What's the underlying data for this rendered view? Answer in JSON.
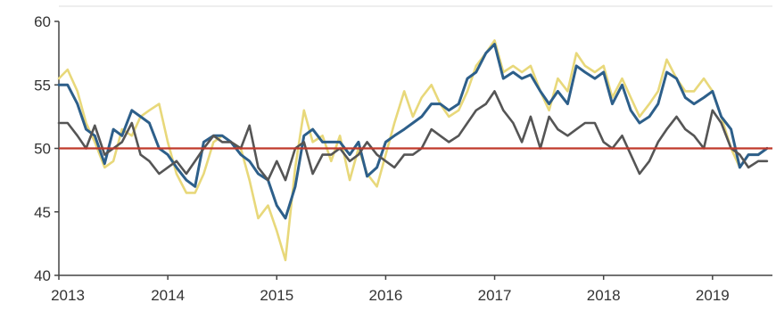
{
  "chart_data": {
    "type": "line",
    "title": "",
    "xlabel": "",
    "ylabel": "",
    "xlim": [
      2013.0,
      2019.55
    ],
    "ylim": [
      40,
      60
    ],
    "y_ticks": [
      40,
      45,
      50,
      55,
      60
    ],
    "x_ticks": [
      2013,
      2014,
      2015,
      2016,
      2017,
      2018,
      2019
    ],
    "x_tick_labels": [
      "2013",
      "2014",
      "2015",
      "2016",
      "2017",
      "2018",
      "2019"
    ],
    "grid": false,
    "legend": "none",
    "reference_line": {
      "y": 50,
      "color": "#c0392b"
    },
    "series": [
      {
        "color": "#e8d87a",
        "x": [
          2013.0,
          2013.08,
          2013.17,
          2013.25,
          2013.33,
          2013.42,
          2013.5,
          2013.58,
          2013.67,
          2013.75,
          2013.83,
          2013.92,
          2014.0,
          2014.08,
          2014.17,
          2014.25,
          2014.33,
          2014.42,
          2014.5,
          2014.58,
          2014.67,
          2014.75,
          2014.83,
          2014.92,
          2015.0,
          2015.08,
          2015.17,
          2015.25,
          2015.33,
          2015.42,
          2015.5,
          2015.58,
          2015.67,
          2015.75,
          2015.83,
          2015.92,
          2016.0,
          2016.08,
          2016.17,
          2016.25,
          2016.33,
          2016.42,
          2016.5,
          2016.58,
          2016.67,
          2016.75,
          2016.83,
          2016.92,
          2017.0,
          2017.08,
          2017.17,
          2017.25,
          2017.33,
          2017.42,
          2017.5,
          2017.58,
          2017.67,
          2017.75,
          2017.83,
          2017.92,
          2018.0,
          2018.08,
          2018.17,
          2018.25,
          2018.33,
          2018.42,
          2018.5,
          2018.58,
          2018.67,
          2018.75,
          2018.83,
          2018.92,
          2019.0,
          2019.08,
          2019.17,
          2019.25,
          2019.33,
          2019.42,
          2019.5
        ],
        "values": [
          55.5,
          56.2,
          54.5,
          52.0,
          50.5,
          48.5,
          49.0,
          51.5,
          51.0,
          52.5,
          53.0,
          53.5,
          50.5,
          48.0,
          46.5,
          46.5,
          48.0,
          50.5,
          51.0,
          50.5,
          50.0,
          47.5,
          44.5,
          45.5,
          43.5,
          41.2,
          48.5,
          53.0,
          50.5,
          51.0,
          49.0,
          51.0,
          47.5,
          50.0,
          48.0,
          47.0,
          49.5,
          52.0,
          54.5,
          52.5,
          54.0,
          55.0,
          53.5,
          52.5,
          53.0,
          54.5,
          56.5,
          57.5,
          58.5,
          56.0,
          56.5,
          56.0,
          56.5,
          54.5,
          53.0,
          55.5,
          54.5,
          57.5,
          56.5,
          56.0,
          56.5,
          54.0,
          55.5,
          54.0,
          52.5,
          53.5,
          54.5,
          57.0,
          55.5,
          54.5,
          54.5,
          55.5,
          54.5,
          52.5,
          50.0,
          48.5,
          49.5,
          49.5,
          50.0
        ]
      },
      {
        "color": "#2d5f8a",
        "x": [
          2013.0,
          2013.08,
          2013.17,
          2013.25,
          2013.33,
          2013.42,
          2013.5,
          2013.58,
          2013.67,
          2013.75,
          2013.83,
          2013.92,
          2014.0,
          2014.08,
          2014.17,
          2014.25,
          2014.33,
          2014.42,
          2014.5,
          2014.58,
          2014.67,
          2014.75,
          2014.83,
          2014.92,
          2015.0,
          2015.08,
          2015.17,
          2015.25,
          2015.33,
          2015.42,
          2015.5,
          2015.58,
          2015.67,
          2015.75,
          2015.83,
          2015.92,
          2016.0,
          2016.08,
          2016.17,
          2016.25,
          2016.33,
          2016.42,
          2016.5,
          2016.58,
          2016.67,
          2016.75,
          2016.83,
          2016.92,
          2017.0,
          2017.08,
          2017.17,
          2017.25,
          2017.33,
          2017.42,
          2017.5,
          2017.58,
          2017.67,
          2017.75,
          2017.83,
          2017.92,
          2018.0,
          2018.08,
          2018.17,
          2018.25,
          2018.33,
          2018.42,
          2018.5,
          2018.58,
          2018.67,
          2018.75,
          2018.83,
          2018.92,
          2019.0,
          2019.08,
          2019.17,
          2019.25,
          2019.33,
          2019.42,
          2019.5
        ],
        "values": [
          55.0,
          55.0,
          53.5,
          51.5,
          51.0,
          48.8,
          51.5,
          51.0,
          53.0,
          52.5,
          52.0,
          50.0,
          49.5,
          48.5,
          47.5,
          47.0,
          50.5,
          51.0,
          51.0,
          50.5,
          49.5,
          49.0,
          48.0,
          47.5,
          45.5,
          44.5,
          47.0,
          51.0,
          51.5,
          50.5,
          50.5,
          50.5,
          49.5,
          50.5,
          47.8,
          48.5,
          50.5,
          51.0,
          51.5,
          52.0,
          52.5,
          53.5,
          53.5,
          53.0,
          53.5,
          55.5,
          56.0,
          57.5,
          58.2,
          55.5,
          56.0,
          55.5,
          55.8,
          54.5,
          53.5,
          54.5,
          53.5,
          56.5,
          56.0,
          55.5,
          56.0,
          53.5,
          55.0,
          53.0,
          52.0,
          52.5,
          53.5,
          56.0,
          55.5,
          54.0,
          53.5,
          54.0,
          54.5,
          52.5,
          51.5,
          48.5,
          49.5,
          49.5,
          50.0
        ]
      },
      {
        "color": "#555555",
        "x": [
          2013.0,
          2013.08,
          2013.17,
          2013.25,
          2013.33,
          2013.42,
          2013.5,
          2013.58,
          2013.67,
          2013.75,
          2013.83,
          2013.92,
          2014.0,
          2014.08,
          2014.17,
          2014.25,
          2014.33,
          2014.42,
          2014.5,
          2014.58,
          2014.67,
          2014.75,
          2014.83,
          2014.92,
          2015.0,
          2015.08,
          2015.17,
          2015.25,
          2015.33,
          2015.42,
          2015.5,
          2015.58,
          2015.67,
          2015.75,
          2015.83,
          2015.92,
          2016.0,
          2016.08,
          2016.17,
          2016.25,
          2016.33,
          2016.42,
          2016.5,
          2016.58,
          2016.67,
          2016.75,
          2016.83,
          2016.92,
          2017.0,
          2017.08,
          2017.17,
          2017.25,
          2017.33,
          2017.42,
          2017.5,
          2017.58,
          2017.67,
          2017.75,
          2017.83,
          2017.92,
          2018.0,
          2018.08,
          2018.17,
          2018.25,
          2018.33,
          2018.42,
          2018.5,
          2018.58,
          2018.67,
          2018.75,
          2018.83,
          2018.92,
          2019.0,
          2019.08,
          2019.17,
          2019.25,
          2019.33,
          2019.42,
          2019.5
        ],
        "values": [
          52.0,
          52.0,
          51.0,
          50.0,
          51.8,
          49.5,
          50.0,
          50.5,
          52.0,
          49.5,
          49.0,
          48.0,
          48.5,
          49.0,
          48.0,
          49.0,
          50.0,
          51.0,
          50.5,
          50.5,
          50.0,
          51.8,
          48.5,
          47.5,
          49.0,
          47.5,
          50.0,
          50.5,
          48.0,
          49.5,
          49.5,
          50.0,
          49.0,
          49.5,
          50.5,
          49.5,
          49.0,
          48.5,
          49.5,
          49.5,
          50.0,
          51.5,
          51.0,
          50.5,
          51.0,
          52.0,
          53.0,
          53.5,
          54.5,
          53.0,
          52.0,
          50.5,
          52.5,
          50.0,
          52.5,
          51.5,
          51.0,
          51.5,
          52.0,
          52.0,
          50.5,
          50.0,
          51.0,
          49.5,
          48.0,
          49.0,
          50.5,
          51.5,
          52.5,
          51.5,
          51.0,
          50.0,
          53.0,
          52.0,
          50.0,
          49.5,
          48.5,
          49.0,
          49.0
        ]
      }
    ]
  }
}
